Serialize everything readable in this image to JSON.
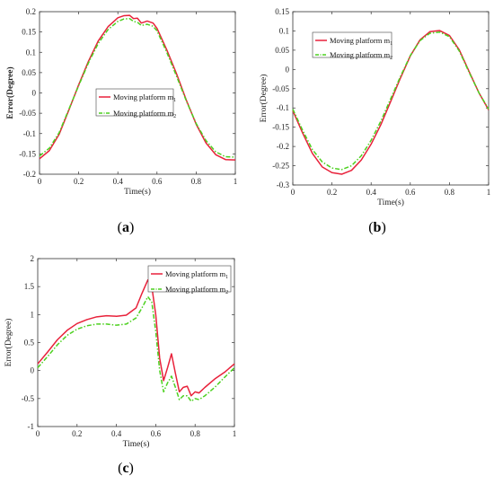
{
  "chart_data": [
    {
      "id": "a",
      "type": "line",
      "caption": {
        "open": "(",
        "letter": "a",
        "close": ")"
      },
      "xlabel": "Time(s)",
      "ylabel": "Error(Degree)",
      "ylabel_bold": true,
      "xlim": [
        0,
        1
      ],
      "ylim": [
        -0.2,
        0.2
      ],
      "xticks": [
        0,
        0.2,
        0.4,
        0.6,
        0.8,
        1
      ],
      "xtick_labels": [
        "0",
        "0.2",
        "0.4",
        "0.6",
        "0.8",
        "1"
      ],
      "yticks": [
        -0.2,
        -0.15,
        -0.1,
        -0.05,
        0,
        0.05,
        0.1,
        0.15,
        0.2
      ],
      "ytick_labels": [
        "-0.2",
        "-0.15",
        "-0.1",
        "-0.05",
        "0",
        "0.05",
        "0.1",
        "0.15",
        "0.2"
      ],
      "grid": false,
      "legend_position": "center",
      "series": [
        {
          "name": "Moving platform m",
          "subscript": "1",
          "color": "#e8213a",
          "style": "solid",
          "x": [
            0,
            0.05,
            0.1,
            0.15,
            0.2,
            0.25,
            0.3,
            0.35,
            0.4,
            0.43,
            0.46,
            0.48,
            0.5,
            0.52,
            0.55,
            0.58,
            0.6,
            0.65,
            0.7,
            0.75,
            0.8,
            0.85,
            0.9,
            0.95,
            1
          ],
          "y": [
            -0.162,
            -0.142,
            -0.102,
            -0.042,
            0.02,
            0.078,
            0.128,
            0.163,
            0.185,
            0.19,
            0.191,
            0.183,
            0.184,
            0.172,
            0.177,
            0.172,
            0.159,
            0.106,
            0.047,
            -0.018,
            -0.077,
            -0.123,
            -0.152,
            -0.164,
            -0.165
          ]
        },
        {
          "name": "Moving platform m",
          "subscript": "2",
          "color": "#4cd11f",
          "style": "dashdot",
          "x": [
            0,
            0.05,
            0.1,
            0.15,
            0.2,
            0.25,
            0.3,
            0.35,
            0.4,
            0.43,
            0.46,
            0.48,
            0.5,
            0.52,
            0.55,
            0.58,
            0.6,
            0.65,
            0.7,
            0.75,
            0.8,
            0.85,
            0.9,
            0.95,
            1
          ],
          "y": [
            -0.155,
            -0.136,
            -0.098,
            -0.04,
            0.018,
            0.074,
            0.122,
            0.156,
            0.176,
            0.182,
            0.183,
            0.176,
            0.174,
            0.166,
            0.169,
            0.164,
            0.153,
            0.1,
            0.041,
            -0.02,
            -0.075,
            -0.117,
            -0.145,
            -0.157,
            -0.158
          ]
        }
      ]
    },
    {
      "id": "b",
      "type": "line",
      "caption": {
        "open": "(",
        "letter": "b",
        "close": ")"
      },
      "xlabel": "Time(s)",
      "ylabel": "Error(Degree)",
      "ylabel_bold": false,
      "xlim": [
        0,
        1
      ],
      "ylim": [
        -0.3,
        0.15
      ],
      "xticks": [
        0,
        0.2,
        0.4,
        0.6,
        0.8,
        1
      ],
      "xtick_labels": [
        "0",
        "0.2",
        "0.4",
        "0.6",
        "0.8",
        "1"
      ],
      "yticks": [
        -0.3,
        -0.25,
        -0.2,
        -0.15,
        -0.1,
        -0.05,
        0,
        0.05,
        0.1,
        0.15
      ],
      "ytick_labels": [
        "-0.3",
        "-0.25",
        "-0.2",
        "-0.15",
        "-0.1",
        "-0.05",
        "0",
        "0.05",
        "0.1",
        "0.15"
      ],
      "grid": false,
      "legend_position": "top-left",
      "series": [
        {
          "name": "Moving platform m",
          "subscript": "1",
          "color": "#e8213a",
          "style": "solid",
          "x": [
            0,
            0.05,
            0.1,
            0.15,
            0.2,
            0.25,
            0.3,
            0.35,
            0.4,
            0.45,
            0.5,
            0.55,
            0.6,
            0.65,
            0.7,
            0.75,
            0.8,
            0.85,
            0.9,
            0.95,
            1
          ],
          "y": [
            -0.107,
            -0.165,
            -0.218,
            -0.253,
            -0.268,
            -0.272,
            -0.262,
            -0.235,
            -0.194,
            -0.143,
            -0.083,
            -0.022,
            0.035,
            0.077,
            0.098,
            0.101,
            0.088,
            0.051,
            -0.005,
            -0.06,
            -0.105
          ]
        },
        {
          "name": "Moving platform m",
          "subscript": "2",
          "color": "#4cd11f",
          "style": "dashdot",
          "x": [
            0,
            0.05,
            0.1,
            0.15,
            0.2,
            0.25,
            0.3,
            0.35,
            0.4,
            0.45,
            0.5,
            0.55,
            0.6,
            0.65,
            0.7,
            0.75,
            0.8,
            0.85,
            0.9,
            0.95,
            1
          ],
          "y": [
            -0.103,
            -0.158,
            -0.208,
            -0.24,
            -0.256,
            -0.26,
            -0.25,
            -0.224,
            -0.184,
            -0.134,
            -0.076,
            -0.018,
            0.036,
            0.075,
            0.094,
            0.097,
            0.085,
            0.048,
            -0.007,
            -0.06,
            -0.103
          ]
        }
      ]
    },
    {
      "id": "c",
      "type": "line",
      "caption": {
        "open": "(",
        "letter": "c",
        "close": ")"
      },
      "xlabel": "Time(s)",
      "ylabel": "Error(Degree)",
      "ylabel_bold": false,
      "xlim": [
        0,
        1
      ],
      "ylim": [
        -1,
        2
      ],
      "xticks": [
        0,
        0.2,
        0.4,
        0.6,
        0.8,
        1
      ],
      "xtick_labels": [
        "0",
        "0.2",
        "0.4",
        "0.6",
        "0.8",
        "1"
      ],
      "yticks": [
        -1,
        -0.5,
        0,
        0.5,
        1,
        1.5,
        2
      ],
      "ytick_labels": [
        "-1",
        "-0.5",
        "0",
        "0.5",
        "1",
        "1.5",
        "2"
      ],
      "grid": false,
      "legend_position": "top-right",
      "series": [
        {
          "name": "Moving platform m",
          "subscript": "1",
          "color": "#e8213a",
          "style": "solid",
          "x": [
            0,
            0.05,
            0.1,
            0.15,
            0.2,
            0.25,
            0.3,
            0.35,
            0.4,
            0.45,
            0.5,
            0.53,
            0.56,
            0.58,
            0.6,
            0.62,
            0.64,
            0.66,
            0.68,
            0.7,
            0.72,
            0.74,
            0.76,
            0.78,
            0.8,
            0.82,
            0.85,
            0.9,
            0.95,
            1
          ],
          "y": [
            0.12,
            0.33,
            0.55,
            0.72,
            0.84,
            0.91,
            0.96,
            0.98,
            0.97,
            0.99,
            1.12,
            1.38,
            1.62,
            1.5,
            1.0,
            0.22,
            -0.18,
            0.05,
            0.3,
            -0.05,
            -0.38,
            -0.3,
            -0.28,
            -0.45,
            -0.38,
            -0.4,
            -0.3,
            -0.15,
            -0.03,
            0.12
          ]
        },
        {
          "name": "Moving platform m",
          "subscript": "2",
          "color": "#4cd11f",
          "style": "dashdot",
          "x": [
            0,
            0.05,
            0.1,
            0.15,
            0.2,
            0.25,
            0.3,
            0.35,
            0.4,
            0.45,
            0.5,
            0.53,
            0.56,
            0.58,
            0.6,
            0.62,
            0.64,
            0.66,
            0.68,
            0.7,
            0.72,
            0.74,
            0.76,
            0.78,
            0.8,
            0.82,
            0.85,
            0.9,
            0.95,
            1
          ],
          "y": [
            0.05,
            0.25,
            0.46,
            0.63,
            0.74,
            0.8,
            0.83,
            0.83,
            0.81,
            0.83,
            0.94,
            1.12,
            1.32,
            1.22,
            0.7,
            0.0,
            -0.38,
            -0.22,
            -0.1,
            -0.3,
            -0.52,
            -0.45,
            -0.45,
            -0.55,
            -0.5,
            -0.52,
            -0.45,
            -0.3,
            -0.12,
            0.05
          ]
        }
      ]
    }
  ]
}
